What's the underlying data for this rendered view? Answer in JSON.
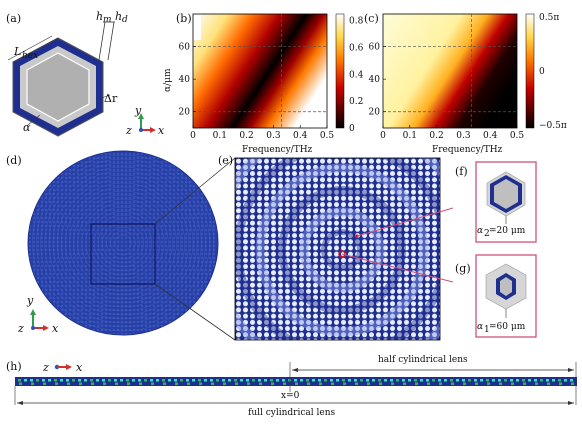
{
  "panels": {
    "a": {
      "label": "(a)",
      "dims": {
        "h_m": "h",
        "h_m_sub": "m",
        "h_d": "h",
        "h_d_sub": "d",
        "L": "L",
        "L_sub": "hex",
        "dr": "Δr",
        "alpha": "α"
      },
      "axes": {
        "y": "y",
        "z": "z",
        "x": "x"
      }
    },
    "b": {
      "label": "(b)"
    },
    "c": {
      "label": "(c)"
    },
    "d": {
      "label": "(d)",
      "axes": {
        "y": "y",
        "z": "z",
        "x": "x"
      }
    },
    "e": {
      "label": "(e)"
    },
    "f": {
      "label": "(f)",
      "annotation": "α",
      "annotation_sub": "2",
      "annotation_rest": "=20 μm"
    },
    "g": {
      "label": "(g)",
      "annotation": "α",
      "annotation_sub": "1",
      "annotation_rest": "=60 μm"
    },
    "h": {
      "label": "(h)",
      "axes": {
        "z": "z",
        "x": "x"
      },
      "half_label": "half cylindrical lens",
      "full_label": "full cylindrical lens",
      "origin_label": "x=0"
    }
  },
  "chart_data": [
    {
      "type": "heatmap",
      "panel": "b",
      "xlabel": "Frequency/THz",
      "ylabel": "α/μm",
      "xlim": [
        0,
        0.5
      ],
      "ylim": [
        10,
        80
      ],
      "xticks": [
        "0",
        "0.1",
        "0.2",
        "0.3",
        "0.4",
        "0.5"
      ],
      "yticks": [
        "20",
        "40",
        "60"
      ],
      "colorbar": {
        "ticks": [
          "0",
          "0.2",
          "0.4",
          "0.6",
          "0.8"
        ],
        "range": [
          0,
          0.85
        ],
        "colormap": "hot"
      },
      "dashed_lines": {
        "x": [
          0.33
        ],
        "y": [
          20,
          60
        ]
      }
    },
    {
      "type": "heatmap",
      "panel": "c",
      "xlabel": "Frequency/THz",
      "xlim": [
        0,
        0.5
      ],
      "ylim": [
        10,
        80
      ],
      "xticks": [
        "0",
        "0.1",
        "0.2",
        "0.3",
        "0.4",
        "0.5"
      ],
      "yticks": [
        "20",
        "40",
        "60"
      ],
      "colorbar": {
        "ticks": [
          "0.5π",
          "0",
          "−0.5π"
        ],
        "range": [
          -0.5,
          0.5
        ],
        "colormap": "hot"
      },
      "dashed_lines": {
        "x": [
          0.33
        ],
        "y": [
          20,
          60
        ]
      }
    }
  ],
  "colors": {
    "navy": "#1f2f8f",
    "blue": "#3048b0",
    "gray": "#bdbdbd",
    "pink": "#d2507a",
    "green": "#3ab060",
    "cyan": "#3fe0c0",
    "red": "#d01010"
  }
}
